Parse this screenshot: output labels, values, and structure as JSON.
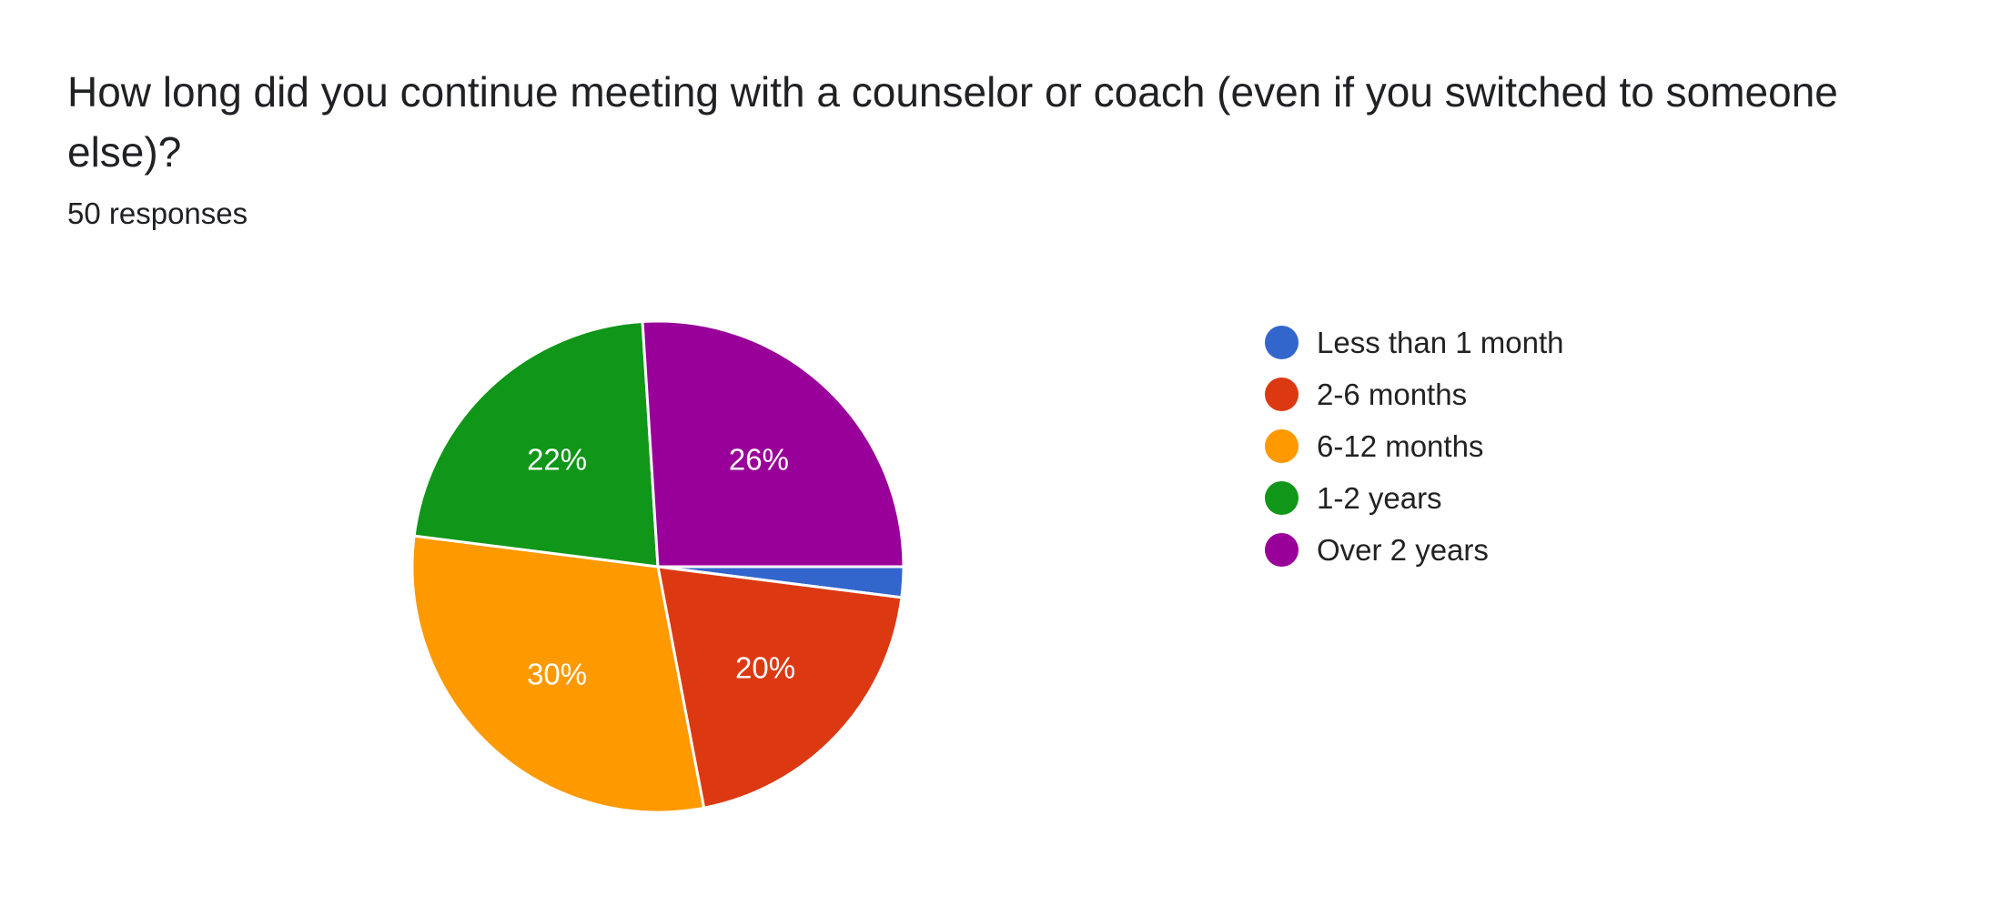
{
  "header": {
    "question": "How long did you continue meeting with a counselor or coach (even if you switched to someone else)?",
    "responses": "50 responses"
  },
  "chart_data": {
    "type": "pie",
    "title": "How long did you continue meeting with a counselor or coach (even if you switched to someone else)?",
    "total_responses": 50,
    "categories": [
      "Less than 1 month",
      "2-6 months",
      "6-12 months",
      "1-2 years",
      "Over 2 years"
    ],
    "values": [
      2,
      20,
      30,
      22,
      26
    ],
    "data_labels": [
      "",
      "20%",
      "30%",
      "22%",
      "26%"
    ],
    "colors": [
      "#3366cc",
      "#dc3912",
      "#ff9900",
      "#109618",
      "#990099"
    ],
    "legend_position": "right"
  }
}
